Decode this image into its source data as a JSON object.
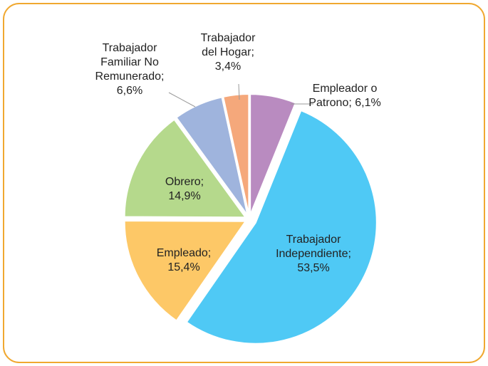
{
  "chart_data": {
    "type": "pie",
    "categories": [
      "Empleador o Patrono;",
      "Trabajador Independiente;",
      "Empleado;",
      "Obrero;",
      "Trabajador Familiar No Remunerado;",
      "Trabajador del Hogar;"
    ],
    "values": [
      6.1,
      53.5,
      15.4,
      14.9,
      6.6,
      3.4
    ],
    "value_labels": [
      "6,1%",
      "53,5%",
      "15,4%",
      "14,9%",
      "6,6%",
      "3,4%"
    ],
    "colors": [
      "#b98bc0",
      "#4fc9f5",
      "#fdc867",
      "#b5d98c",
      "#9fb4dd",
      "#f5a87b"
    ]
  }
}
